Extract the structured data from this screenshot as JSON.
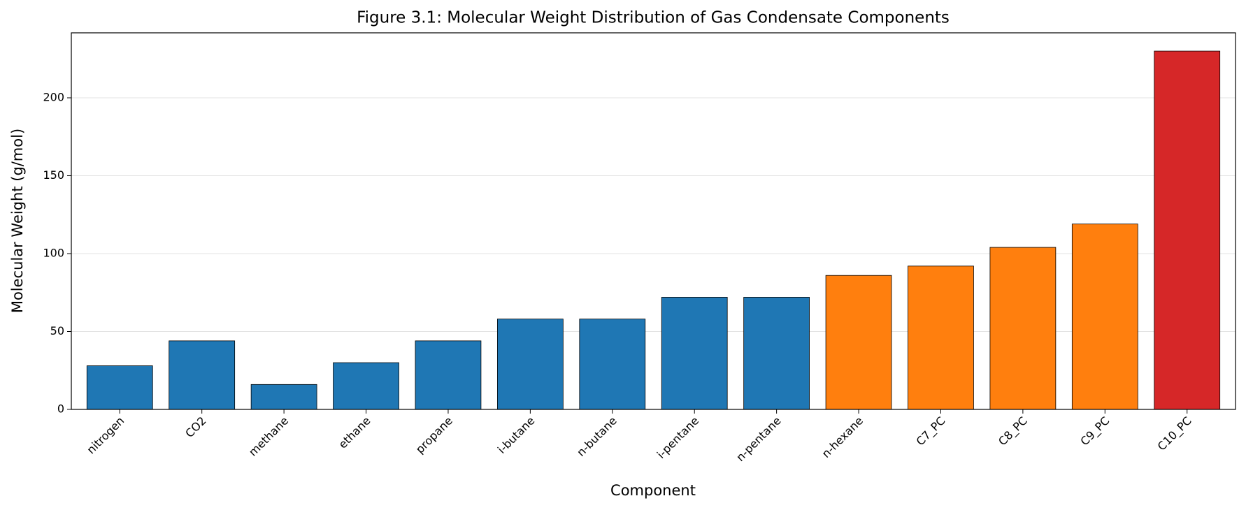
{
  "chart_data": {
    "type": "bar",
    "title": "Figure 3.1: Molecular Weight Distribution of Gas Condensate Components",
    "x_label": "Component",
    "y_label": "Molecular Weight (g/mol)",
    "categories": [
      "nitrogen",
      "CO2",
      "methane",
      "ethane",
      "propane",
      "i-butane",
      "n-butane",
      "i-pentane",
      "n-pentane",
      "n-hexane",
      "C7_PC",
      "C8_PC",
      "C9_PC",
      "C10_PC"
    ],
    "values": [
      28,
      44,
      16,
      30,
      44,
      58,
      58,
      72,
      72,
      86,
      92,
      104,
      119,
      230
    ],
    "colors": [
      "#1f77b4",
      "#1f77b4",
      "#1f77b4",
      "#1f77b4",
      "#1f77b4",
      "#1f77b4",
      "#1f77b4",
      "#1f77b4",
      "#1f77b4",
      "#ff7f0e",
      "#ff7f0e",
      "#ff7f0e",
      "#ff7f0e",
      "#d62728"
    ],
    "ylim": [
      0,
      241.7
    ],
    "yticks": [
      0,
      50,
      100,
      150,
      200
    ],
    "grid": true
  }
}
